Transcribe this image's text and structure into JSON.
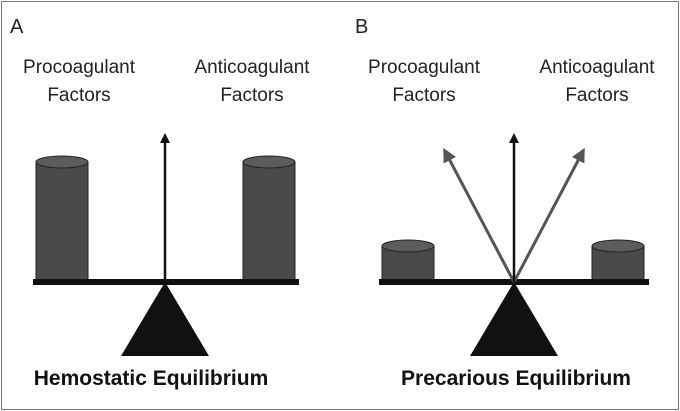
{
  "panel_a": {
    "letter": "A",
    "left_label_line1": "Procoagulant",
    "left_label_line2": "Factors",
    "right_label_line1": "Anticoagulant",
    "right_label_line2": "Factors",
    "caption": "Hemostatic Equilibrium"
  },
  "panel_b": {
    "letter": "B",
    "left_label_line1": "Procoagulant",
    "left_label_line2": "Factors",
    "right_label_line1": "Anticoagulant",
    "right_label_line2": "Factors",
    "caption": "Precarious Equilibrium"
  },
  "colors": {
    "border": "#777777",
    "cylinder_body": "#4a4a4a",
    "cylinder_top": "#5c5c5c",
    "arrow_main": "#111111",
    "arrow_side": "#555555",
    "fulcrum": "#111111"
  }
}
